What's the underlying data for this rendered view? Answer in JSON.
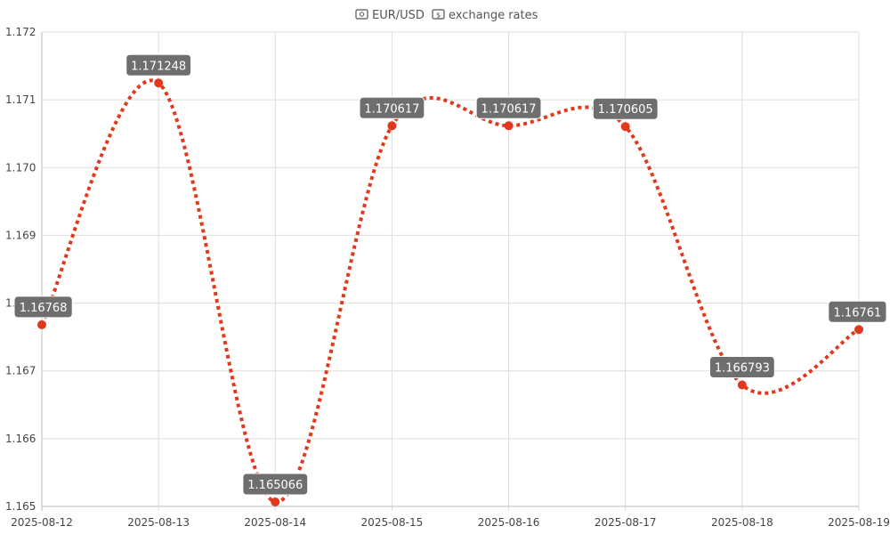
{
  "chart_data": {
    "type": "line",
    "title": {
      "base_currency": "EUR/USD",
      "suffix": "exchange rates",
      "icons": [
        "euro-banknote-icon",
        "dollar-banknote-icon"
      ]
    },
    "x": [
      "2025-08-12",
      "2025-08-13",
      "2025-08-14",
      "2025-08-15",
      "2025-08-16",
      "2025-08-17",
      "2025-08-18",
      "2025-08-19"
    ],
    "series": [
      {
        "values": [
          1.16768,
          1.171248,
          1.165066,
          1.170617,
          1.170617,
          1.170605,
          1.166793,
          1.16761
        ],
        "labels": [
          "1.16768",
          "1.171248",
          "1.165066",
          "1.170617",
          "1.170617",
          "1.170605",
          "1.166793",
          "1.16761"
        ],
        "color": "#e0391d",
        "line_style": "dotted",
        "smooth": true
      }
    ],
    "ylim": [
      1.165,
      1.172
    ],
    "yticks": [
      "1.165",
      "1.166",
      "1.167",
      "1.168",
      "1.169",
      "1.170",
      "1.171",
      "1.172"
    ],
    "grid": true,
    "legend": "none"
  }
}
